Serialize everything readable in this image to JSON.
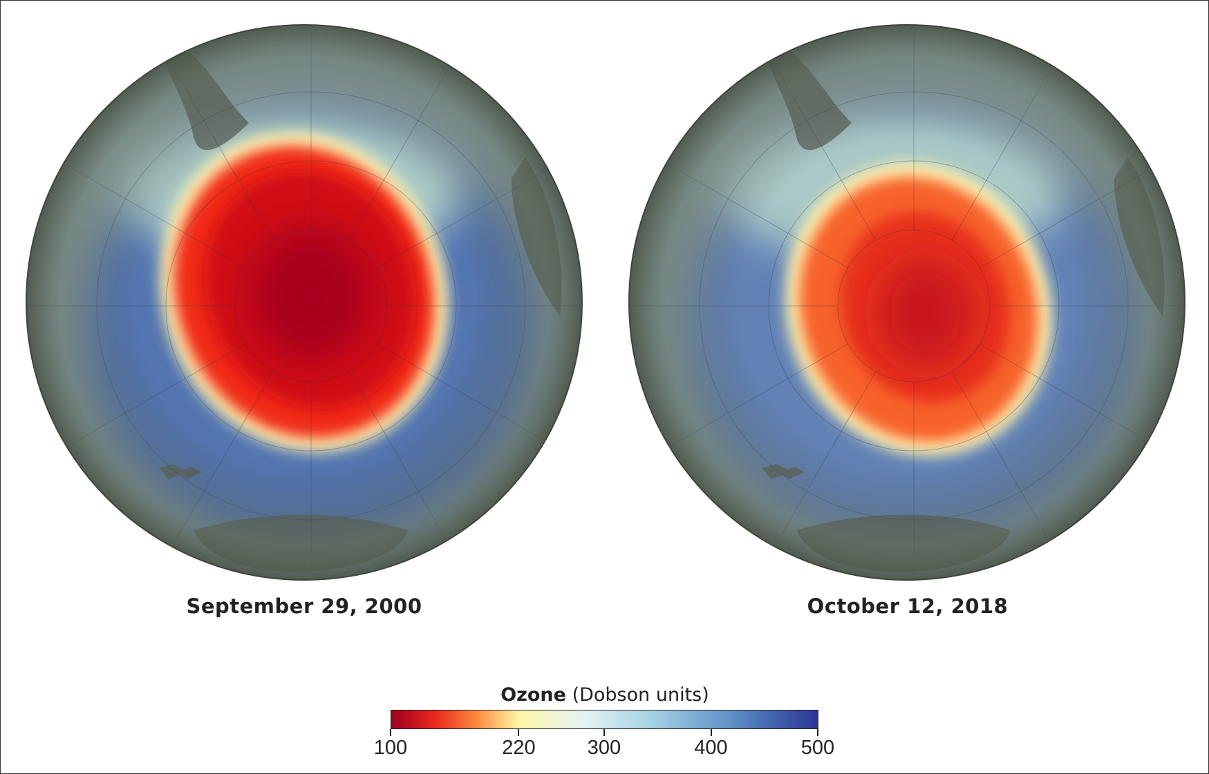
{
  "maps": [
    {
      "date": "September 29, 2000",
      "hole_intensity": "deep"
    },
    {
      "date": "October 12, 2018",
      "hole_intensity": "moderate"
    }
  ],
  "legend": {
    "title_bold": "Ozone",
    "title_rest": "(Dobson units)",
    "min": 100,
    "max": 500,
    "ticks": [
      "100",
      "220",
      "300",
      "400",
      "500"
    ],
    "tick_values": [
      100,
      220,
      300,
      400,
      500
    ],
    "colors": [
      "#9e0020",
      "#e8261c",
      "#fb8a3e",
      "#fff7a8",
      "#e4f3f2",
      "#a9d4e6",
      "#5d8fc6",
      "#2a3596"
    ]
  }
}
